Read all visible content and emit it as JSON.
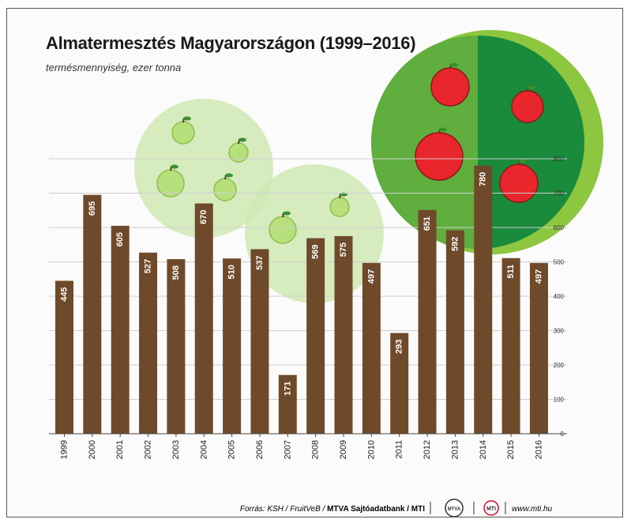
{
  "header": {
    "title": "Almatermesztés Magyarországon (1999–2016)",
    "subtitle": "termésmennyiség, ezer tonna"
  },
  "footer": {
    "source_prefix": "Forrás: KSH / FruitVeB / ",
    "source_bold": "MTVA Sajtóadatbank / MTI",
    "logo_mtva": "MTVA",
    "logo_mti": "MTI",
    "website": "www.mti.hu"
  },
  "colors": {
    "bar": "#6e4a2a",
    "grid": "#cfcfcf",
    "light_green": "#cfe8b3",
    "dark_green": "#1a8a3c",
    "mid_green": "#8dc63f",
    "apple_red": "#e8262b"
  },
  "chart_data": {
    "type": "bar",
    "categories": [
      "1999",
      "2000",
      "2001",
      "2002",
      "2003",
      "2004",
      "2005",
      "2006",
      "2007",
      "2008",
      "2009",
      "2010",
      "2011",
      "2012",
      "2013",
      "2014",
      "2015",
      "2016"
    ],
    "values": [
      445,
      695,
      605,
      527,
      508,
      670,
      510,
      537,
      171,
      569,
      575,
      497,
      293,
      651,
      592,
      780,
      511,
      497
    ],
    "title": "Almatermesztés Magyarországon (1999–2016)",
    "subtitle": "termésmennyiség, ezer tonna",
    "ylim": [
      0,
      800
    ],
    "yticks": [
      0,
      100,
      200,
      300,
      400,
      500,
      600,
      700,
      800
    ],
    "axis_position": "right",
    "grid": true,
    "data_labels": true
  }
}
